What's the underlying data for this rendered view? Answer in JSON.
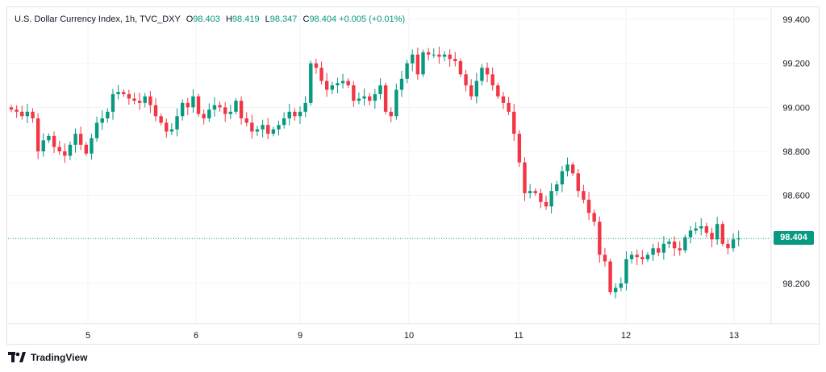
{
  "header": {
    "title": "U.S. Dollar Currency Index, 1h, TVC_DXY",
    "open_label": "O",
    "open": "98.403",
    "high_label": "H",
    "high": "98.419",
    "low_label": "L",
    "low": "98.347",
    "close_label": "C",
    "close": "98.404",
    "change": "+0.005 (+0.01%)"
  },
  "last_price_badge": "98.404",
  "brand": "TradingView",
  "colors": {
    "up": "#089981",
    "down": "#f23645",
    "grid": "#f0f3fa",
    "axis_text": "#131722"
  },
  "chart_data": {
    "type": "candlestick",
    "title": "U.S. Dollar Currency Index, 1h, TVC_DXY",
    "xlabel": "",
    "ylabel": "",
    "x_ticks": [
      "5",
      "6",
      "9",
      "10",
      "11",
      "12",
      "13"
    ],
    "y_ticks": [
      "99.400",
      "99.200",
      "99.000",
      "98.800",
      "98.600",
      "98.200"
    ],
    "ylim": [
      98.05,
      99.45
    ],
    "last_price": 98.404,
    "grid": true,
    "closes": [
      98.99,
      98.98,
      98.96,
      98.98,
      98.95,
      98.8,
      98.85,
      98.87,
      98.82,
      98.8,
      98.78,
      98.83,
      98.88,
      98.83,
      98.79,
      98.86,
      98.93,
      98.95,
      98.98,
      99.06,
      99.07,
      99.06,
      99.04,
      99.03,
      99.02,
      99.05,
      99.01,
      98.96,
      98.93,
      98.89,
      98.9,
      98.96,
      99.02,
      99.0,
      99.05,
      98.97,
      98.95,
      98.99,
      99.01,
      99.0,
      98.97,
      98.98,
      99.03,
      98.95,
      98.93,
      98.89,
      98.9,
      98.92,
      98.88,
      98.9,
      98.92,
      98.95,
      98.98,
      98.96,
      98.98,
      99.02,
      99.2,
      99.18,
      99.12,
      99.08,
      99.1,
      99.11,
      99.12,
      99.1,
      99.03,
      99.04,
      99.05,
      99.03,
      99.06,
      99.1,
      98.98,
      98.96,
      99.08,
      99.13,
      99.2,
      99.24,
      99.15,
      99.25,
      99.24,
      99.24,
      99.23,
      99.24,
      99.22,
      99.21,
      99.15,
      99.1,
      99.05,
      99.12,
      99.18,
      99.15,
      99.1,
      99.05,
      99.02,
      98.98,
      98.88,
      98.75,
      98.61,
      98.62,
      98.61,
      98.57,
      98.55,
      98.62,
      98.65,
      98.71,
      98.74,
      98.7,
      98.62,
      98.58,
      98.52,
      98.48,
      98.33,
      98.3,
      98.16,
      98.18,
      98.2,
      98.31,
      98.33,
      98.32,
      98.31,
      98.33,
      98.36,
      98.34,
      98.38,
      98.39,
      98.36,
      98.35,
      98.41,
      98.44,
      98.45,
      98.46,
      98.43,
      98.4,
      98.47,
      98.38,
      98.36,
      98.4,
      98.404
    ]
  }
}
